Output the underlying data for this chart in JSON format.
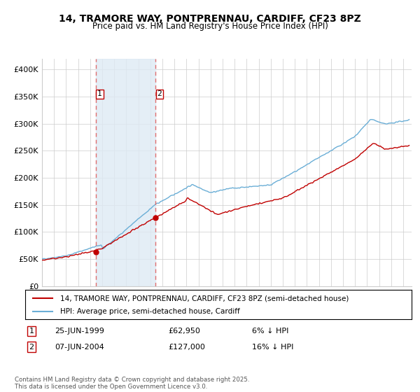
{
  "title": "14, TRAMORE WAY, PONTPRENNAU, CARDIFF, CF23 8PZ",
  "subtitle": "Price paid vs. HM Land Registry's House Price Index (HPI)",
  "ylim": [
    0,
    420000
  ],
  "yticks": [
    0,
    50000,
    100000,
    150000,
    200000,
    250000,
    300000,
    350000,
    400000
  ],
  "ytick_labels": [
    "£0",
    "£50K",
    "£100K",
    "£150K",
    "£200K",
    "£250K",
    "£300K",
    "£350K",
    "£400K"
  ],
  "hpi_color": "#6aaed6",
  "price_color": "#c00000",
  "vline_color": "#e07070",
  "fill_color": "#deeaf4",
  "purchase1_date": 1999.48,
  "purchase1_price": 62950,
  "purchase2_date": 2004.44,
  "purchase2_price": 127000,
  "legend_address": "14, TRAMORE WAY, PONTPRENNAU, CARDIFF, CF23 8PZ (semi-detached house)",
  "legend_hpi": "HPI: Average price, semi-detached house, Cardiff",
  "annotation1_label": "1",
  "annotation1_date": "25-JUN-1999",
  "annotation1_price": "£62,950",
  "annotation1_pct": "6% ↓ HPI",
  "annotation2_label": "2",
  "annotation2_date": "07-JUN-2004",
  "annotation2_price": "£127,000",
  "annotation2_pct": "16% ↓ HPI",
  "footer": "Contains HM Land Registry data © Crown copyright and database right 2025.\nThis data is licensed under the Open Government Licence v3.0.",
  "background_color": "#ffffff",
  "grid_color": "#cccccc"
}
